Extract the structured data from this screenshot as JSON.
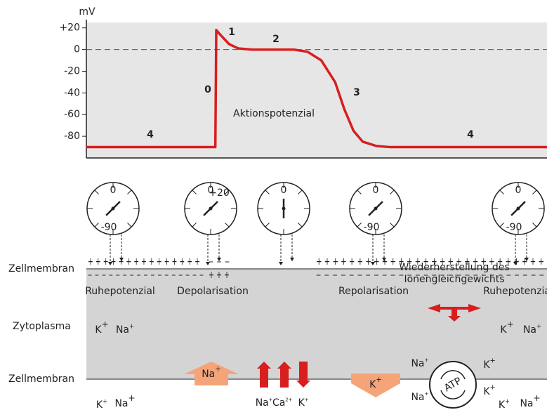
{
  "chart_data": {
    "type": "line",
    "y_label": "mV",
    "ylim": [
      -100,
      25
    ],
    "yticks": [
      {
        "value": 20,
        "label": "+20"
      },
      0,
      -20,
      -40,
      -60,
      -80
    ],
    "xlim": [
      0,
      100
    ],
    "x": [
      0,
      28,
      28.2,
      29,
      31,
      33,
      36,
      45,
      48,
      51,
      54,
      56,
      58,
      60,
      63,
      66,
      100
    ],
    "series": [
      {
        "color": "#d81e1e",
        "values": [
          -90,
          -90,
          18,
          14,
          5,
          1,
          0,
          0,
          -2,
          -10,
          -30,
          -55,
          -75,
          -85,
          -89,
          -90,
          -90
        ]
      }
    ],
    "phase_labels": [
      "0",
      "1",
      "2",
      "3",
      "4",
      "4"
    ],
    "annotation": "Aktionspotenzial"
  },
  "dials": [
    {
      "top": "0",
      "bottom": "-90"
    },
    {
      "top": "0",
      "side": "+20"
    },
    {
      "top": "0"
    },
    {
      "top": "0",
      "bottom": "-90"
    },
    {
      "top": "0",
      "bottom": "-90"
    }
  ],
  "membrane_labels": [
    "Zellmembran",
    "Zytoplasma",
    "Zellmembran"
  ],
  "charges": [
    "+ +  + + + + + + + + + + + + +",
    "– – – – – – – – – – – – – – – – –",
    "– – –",
    "+ + +",
    "+ + + + + + + + + + + + + + + + + + + + + + + + + + + +",
    "– – – – – – – – – – – – – – – – – – – – – – – – – – – –"
  ],
  "phases": [
    "Ruhepotenzial",
    "Depolarisation",
    "Repolarisation",
    "Ruhepotenzial"
  ],
  "pump_label": [
    "Wiederherstellung des",
    "Ionengleichgewichts"
  ],
  "pump_text": "ATP",
  "ions": [
    {
      "symbol": "K",
      "charge": "+"
    },
    {
      "symbol": "Na",
      "charge": "+"
    },
    {
      "symbol": "K",
      "charge": "+"
    },
    {
      "symbol": "Na",
      "charge": "+"
    },
    {
      "symbol": "Na",
      "charge": "+"
    },
    {
      "symbol": "Na",
      "charge": "+"
    },
    {
      "symbol": "Ca",
      "charge": "2+"
    },
    {
      "symbol": "K",
      "charge": "+"
    },
    {
      "symbol": "K",
      "charge": "+"
    },
    {
      "symbol": "Na",
      "charge": "+"
    },
    {
      "symbol": "Na",
      "charge": "+"
    },
    {
      "symbol": "K",
      "charge": "+"
    },
    {
      "symbol": "K",
      "charge": "+"
    },
    {
      "symbol": "K",
      "charge": "+"
    },
    {
      "symbol": "Na",
      "charge": "+"
    },
    {
      "symbol": "K",
      "charge": "+"
    },
    {
      "symbol": "Na",
      "charge": "+"
    }
  ]
}
